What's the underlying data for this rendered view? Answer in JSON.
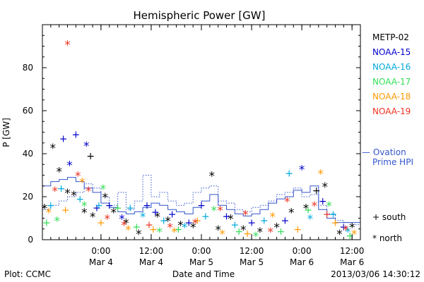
{
  "chart_data": {
    "type": "scatter",
    "title": "Hemispheric Power [GW]",
    "xlabel": "Date and Time",
    "ylabel": "P [GW]",
    "xlim": [
      "2013-03-03T10:00",
      "2013-03-06T14:00"
    ],
    "ylim": [
      0,
      100
    ],
    "y_ticks": [
      0,
      20,
      40,
      60,
      80
    ],
    "x_ticks": [
      {
        "time": "2013-03-04T00:00",
        "label_top": "0:00",
        "label_bottom": "Mar 4"
      },
      {
        "time": "2013-03-04T12:00",
        "label_top": "12:00",
        "label_bottom": "Mar 4"
      },
      {
        "time": "2013-03-05T00:00",
        "label_top": "0:00",
        "label_bottom": "Mar 5"
      },
      {
        "time": "2013-03-05T12:00",
        "label_top": "12:00",
        "label_bottom": "Mar 5"
      },
      {
        "time": "2013-03-06T00:00",
        "label_top": "0:00",
        "label_bottom": "Mar 6"
      },
      {
        "time": "2013-03-06T12:00",
        "label_top": "12:00",
        "label_bottom": "Mar 6"
      }
    ],
    "legend_placement": "right",
    "symbol_legend": {
      "south": "+ south",
      "north": "* north"
    },
    "series": [
      {
        "name": "METP-02",
        "color": "#000000",
        "points": [
          {
            "t": "2013-03-03T10:30",
            "y": 15,
            "m": "*"
          },
          {
            "t": "2013-03-03T12:30",
            "y": 43,
            "m": "*"
          },
          {
            "t": "2013-03-03T14:00",
            "y": 32,
            "m": "*"
          },
          {
            "t": "2013-03-03T16:00",
            "y": 22,
            "m": "*"
          },
          {
            "t": "2013-03-03T17:30",
            "y": 21,
            "m": "*"
          },
          {
            "t": "2013-03-03T20:00",
            "y": 13,
            "m": "*"
          },
          {
            "t": "2013-03-03T21:30",
            "y": 39,
            "m": "+"
          },
          {
            "t": "2013-03-03T22:00",
            "y": 11,
            "m": "*"
          },
          {
            "t": "2013-03-04T01:00",
            "y": 20,
            "m": "*"
          },
          {
            "t": "2013-03-04T03:00",
            "y": 13,
            "m": "*"
          },
          {
            "t": "2013-03-04T06:00",
            "y": 8,
            "m": "*"
          },
          {
            "t": "2013-03-04T09:00",
            "y": 3,
            "m": "*"
          },
          {
            "t": "2013-03-04T13:30",
            "y": 11,
            "m": "*"
          },
          {
            "t": "2013-03-04T16:00",
            "y": 9,
            "m": "*"
          },
          {
            "t": "2013-03-04T19:00",
            "y": 7,
            "m": "*"
          },
          {
            "t": "2013-03-04T22:00",
            "y": 6,
            "m": "*"
          },
          {
            "t": "2013-03-05T02:30",
            "y": 30,
            "m": "*"
          },
          {
            "t": "2013-03-05T04:00",
            "y": 5,
            "m": "*"
          },
          {
            "t": "2013-03-05T07:00",
            "y": 10,
            "m": "*"
          },
          {
            "t": "2013-03-05T10:00",
            "y": 5,
            "m": "*"
          },
          {
            "t": "2013-03-05T14:00",
            "y": 4,
            "m": "*"
          },
          {
            "t": "2013-03-05T18:00",
            "y": 6,
            "m": "*"
          },
          {
            "t": "2013-03-05T21:30",
            "y": 13,
            "m": "*"
          },
          {
            "t": "2013-03-06T01:00",
            "y": 15,
            "m": "*"
          },
          {
            "t": "2013-03-06T03:30",
            "y": 23,
            "m": "+"
          },
          {
            "t": "2013-03-06T05:30",
            "y": 25,
            "m": "*"
          },
          {
            "t": "2013-03-06T09:00",
            "y": 3,
            "m": "*"
          },
          {
            "t": "2013-03-06T12:00",
            "y": 6,
            "m": "*"
          }
        ]
      },
      {
        "name": "NOAA-15",
        "color": "#0000cc",
        "points": [
          {
            "t": "2013-03-03T15:00",
            "y": 47,
            "m": "+"
          },
          {
            "t": "2013-03-03T16:30",
            "y": 35,
            "m": "*"
          },
          {
            "t": "2013-03-03T18:00",
            "y": 49,
            "m": "+"
          },
          {
            "t": "2013-03-03T20:30",
            "y": 44,
            "m": "*"
          },
          {
            "t": "2013-03-03T23:00",
            "y": 15,
            "m": "+"
          },
          {
            "t": "2013-03-04T02:00",
            "y": 16,
            "m": "+"
          },
          {
            "t": "2013-03-04T05:00",
            "y": 10,
            "m": "*"
          },
          {
            "t": "2013-03-04T11:00",
            "y": 16,
            "m": "+"
          },
          {
            "t": "2013-03-04T13:00",
            "y": 13,
            "m": "+"
          },
          {
            "t": "2013-03-04T17:00",
            "y": 12,
            "m": "+"
          },
          {
            "t": "2013-03-04T21:00",
            "y": 8,
            "m": "+"
          },
          {
            "t": "2013-03-05T00:00",
            "y": 16,
            "m": "+"
          },
          {
            "t": "2013-03-05T06:00",
            "y": 11,
            "m": "+"
          },
          {
            "t": "2013-03-05T12:00",
            "y": 8,
            "m": "+"
          },
          {
            "t": "2013-03-05T20:00",
            "y": 9,
            "m": "+"
          },
          {
            "t": "2013-03-06T00:00",
            "y": 33,
            "m": "*"
          },
          {
            "t": "2013-03-06T05:00",
            "y": 18,
            "m": "+"
          },
          {
            "t": "2013-03-06T10:00",
            "y": 6,
            "m": "+"
          }
        ]
      },
      {
        "name": "NOAA-16",
        "color": "#00aadd",
        "points": [
          {
            "t": "2013-03-03T12:00",
            "y": 16,
            "m": "+"
          },
          {
            "t": "2013-03-03T14:30",
            "y": 24,
            "m": "+"
          },
          {
            "t": "2013-03-03T19:00",
            "y": 19,
            "m": "+"
          },
          {
            "t": "2013-03-03T23:30",
            "y": 16,
            "m": "+"
          },
          {
            "t": "2013-03-04T07:00",
            "y": 15,
            "m": "+"
          },
          {
            "t": "2013-03-04T10:00",
            "y": 11,
            "m": "*"
          },
          {
            "t": "2013-03-04T15:00",
            "y": 9,
            "m": "+"
          },
          {
            "t": "2013-03-04T20:00",
            "y": 6,
            "m": "*"
          },
          {
            "t": "2013-03-05T01:00",
            "y": 11,
            "m": "+"
          },
          {
            "t": "2013-03-05T08:00",
            "y": 7,
            "m": "+"
          },
          {
            "t": "2013-03-05T15:00",
            "y": 9,
            "m": "+"
          },
          {
            "t": "2013-03-05T21:00",
            "y": 31,
            "m": "+"
          },
          {
            "t": "2013-03-06T02:00",
            "y": 10,
            "m": "*"
          },
          {
            "t": "2013-03-06T07:30",
            "y": 12,
            "m": "+"
          },
          {
            "t": "2013-03-06T11:00",
            "y": 4,
            "m": "*"
          }
        ]
      },
      {
        "name": "NOAA-17",
        "color": "#33dd55",
        "points": [
          {
            "t": "2013-03-03T11:00",
            "y": 8,
            "m": "+"
          },
          {
            "t": "2013-03-03T13:30",
            "y": 9,
            "m": "*"
          },
          {
            "t": "2013-03-03T20:00",
            "y": 16,
            "m": "*"
          },
          {
            "t": "2013-03-04T00:30",
            "y": 24,
            "m": "*"
          },
          {
            "t": "2013-03-04T04:00",
            "y": 15,
            "m": "+"
          },
          {
            "t": "2013-03-04T08:30",
            "y": 6,
            "m": "+"
          },
          {
            "t": "2013-03-04T14:00",
            "y": 4,
            "m": "*"
          },
          {
            "t": "2013-03-04T18:30",
            "y": 5,
            "m": "+"
          },
          {
            "t": "2013-03-05T03:00",
            "y": 14,
            "m": "*"
          },
          {
            "t": "2013-03-05T09:00",
            "y": 4,
            "m": "+"
          },
          {
            "t": "2013-03-05T13:00",
            "y": 2,
            "m": "*"
          },
          {
            "t": "2013-03-05T19:00",
            "y": 4,
            "m": "+"
          },
          {
            "t": "2013-03-06T01:30",
            "y": 14,
            "m": "+"
          },
          {
            "t": "2013-03-06T06:30",
            "y": 16,
            "m": "*"
          },
          {
            "t": "2013-03-06T11:30",
            "y": 2,
            "m": "+"
          }
        ]
      },
      {
        "name": "NOAA-18",
        "color": "#ff9900",
        "points": [
          {
            "t": "2013-03-03T11:30",
            "y": 13,
            "m": "*"
          },
          {
            "t": "2013-03-03T15:30",
            "y": 14,
            "m": "+"
          },
          {
            "t": "2013-03-03T19:30",
            "y": 27,
            "m": "*"
          },
          {
            "t": "2013-03-04T00:00",
            "y": 8,
            "m": "+"
          },
          {
            "t": "2013-03-04T06:30",
            "y": 5,
            "m": "*"
          },
          {
            "t": "2013-03-04T12:30",
            "y": 5,
            "m": "+"
          },
          {
            "t": "2013-03-04T17:30",
            "y": 4,
            "m": "*"
          },
          {
            "t": "2013-03-04T23:00",
            "y": 9,
            "m": "+"
          },
          {
            "t": "2013-03-05T05:00",
            "y": 3,
            "m": "*"
          },
          {
            "t": "2013-03-05T11:00",
            "y": 3,
            "m": "+"
          },
          {
            "t": "2013-03-05T17:00",
            "y": 11,
            "m": "*"
          },
          {
            "t": "2013-03-05T23:00",
            "y": 5,
            "m": "+"
          },
          {
            "t": "2013-03-06T04:30",
            "y": 31,
            "m": "*"
          },
          {
            "t": "2013-03-06T08:00",
            "y": 8,
            "m": "+"
          },
          {
            "t": "2013-03-06T12:30",
            "y": 3,
            "m": "*"
          }
        ]
      },
      {
        "name": "NOAA-19",
        "color": "#ee3322",
        "points": [
          {
            "t": "2013-03-03T13:00",
            "y": 23,
            "m": "*"
          },
          {
            "t": "2013-03-03T16:00",
            "y": 91,
            "m": "*"
          },
          {
            "t": "2013-03-03T18:30",
            "y": 30,
            "m": "*"
          },
          {
            "t": "2013-03-03T21:00",
            "y": 23,
            "m": "*"
          },
          {
            "t": "2013-03-04T01:30",
            "y": 10,
            "m": "*"
          },
          {
            "t": "2013-03-04T05:30",
            "y": 7,
            "m": "*"
          },
          {
            "t": "2013-03-04T11:30",
            "y": 7,
            "m": "+"
          },
          {
            "t": "2013-03-04T16:30",
            "y": 6,
            "m": "*"
          },
          {
            "t": "2013-03-04T22:30",
            "y": 8,
            "m": "*"
          },
          {
            "t": "2013-03-05T04:30",
            "y": 14,
            "m": "*"
          },
          {
            "t": "2013-03-05T10:30",
            "y": 12,
            "m": "*"
          },
          {
            "t": "2013-03-05T16:30",
            "y": 4,
            "m": "*"
          },
          {
            "t": "2013-03-05T20:30",
            "y": 18,
            "m": "*"
          },
          {
            "t": "2013-03-06T03:00",
            "y": 16,
            "m": "*"
          },
          {
            "t": "2013-03-06T06:00",
            "y": 12,
            "m": "+"
          },
          {
            "t": "2013-03-06T10:30",
            "y": 5,
            "m": "*"
          }
        ]
      }
    ],
    "ovation": {
      "name": "— Ovation Prime HPI",
      "color": "#3355cc",
      "north_dashed": true,
      "steps": [
        {
          "t0": "2013-03-03T10:00",
          "t1": "2013-03-03T12:00",
          "south": 25,
          "north": 14
        },
        {
          "t0": "2013-03-03T12:00",
          "t1": "2013-03-03T14:00",
          "south": 27,
          "north": 16
        },
        {
          "t0": "2013-03-03T14:00",
          "t1": "2013-03-03T16:00",
          "south": 28,
          "north": 18
        },
        {
          "t0": "2013-03-03T16:00",
          "t1": "2013-03-03T18:00",
          "south": 29,
          "north": 20
        },
        {
          "t0": "2013-03-03T18:00",
          "t1": "2013-03-03T20:00",
          "south": 27,
          "north": 22
        },
        {
          "t0": "2013-03-03T20:00",
          "t1": "2013-03-03T22:00",
          "south": 24,
          "north": 26
        },
        {
          "t0": "2013-03-03T22:00",
          "t1": "2013-03-04T00:00",
          "south": 22,
          "north": 24
        },
        {
          "t0": "2013-03-04T00:00",
          "t1": "2013-03-04T02:00",
          "south": 17,
          "north": 20
        },
        {
          "t0": "2013-03-04T02:00",
          "t1": "2013-03-04T04:00",
          "south": 15,
          "north": 16
        },
        {
          "t0": "2013-03-04T04:00",
          "t1": "2013-03-04T06:00",
          "south": 13,
          "north": 22
        },
        {
          "t0": "2013-03-04T06:00",
          "t1": "2013-03-04T08:00",
          "south": 12,
          "north": 14
        },
        {
          "t0": "2013-03-04T08:00",
          "t1": "2013-03-04T10:00",
          "south": 13,
          "north": 18
        },
        {
          "t0": "2013-03-04T10:00",
          "t1": "2013-03-04T12:00",
          "south": 15,
          "north": 30
        },
        {
          "t0": "2013-03-04T12:00",
          "t1": "2013-03-04T14:00",
          "south": 17,
          "north": 20
        },
        {
          "t0": "2013-03-04T14:00",
          "t1": "2013-03-04T16:00",
          "south": 16,
          "north": 22
        },
        {
          "t0": "2013-03-04T16:00",
          "t1": "2013-03-04T18:00",
          "south": 14,
          "north": 18
        },
        {
          "t0": "2013-03-04T18:00",
          "t1": "2013-03-04T20:00",
          "south": 13,
          "north": 16
        },
        {
          "t0": "2013-03-04T20:00",
          "t1": "2013-03-04T22:00",
          "south": 12,
          "north": 17
        },
        {
          "t0": "2013-03-04T22:00",
          "t1": "2013-03-05T00:00",
          "south": 15,
          "north": 22
        },
        {
          "t0": "2013-03-05T00:00",
          "t1": "2013-03-05T02:00",
          "south": 18,
          "north": 24
        },
        {
          "t0": "2013-03-05T02:00",
          "t1": "2013-03-05T04:00",
          "south": 21,
          "north": 25
        },
        {
          "t0": "2013-03-05T04:00",
          "t1": "2013-03-05T06:00",
          "south": 16,
          "north": 18
        },
        {
          "t0": "2013-03-05T06:00",
          "t1": "2013-03-05T08:00",
          "south": 14,
          "north": 17
        },
        {
          "t0": "2013-03-05T08:00",
          "t1": "2013-03-05T10:00",
          "south": 12,
          "north": 14
        },
        {
          "t0": "2013-03-05T10:00",
          "t1": "2013-03-05T12:00",
          "south": 11,
          "north": 13
        },
        {
          "t0": "2013-03-05T12:00",
          "t1": "2013-03-05T14:00",
          "south": 12,
          "north": 15
        },
        {
          "t0": "2013-03-05T14:00",
          "t1": "2013-03-05T16:00",
          "south": 14,
          "north": 16
        },
        {
          "t0": "2013-03-05T16:00",
          "t1": "2013-03-05T18:00",
          "south": 17,
          "north": 18
        },
        {
          "t0": "2013-03-05T18:00",
          "t1": "2013-03-05T20:00",
          "south": 19,
          "north": 21
        },
        {
          "t0": "2013-03-05T20:00",
          "t1": "2013-03-05T22:00",
          "south": 20,
          "north": 22
        },
        {
          "t0": "2013-03-05T22:00",
          "t1": "2013-03-06T00:00",
          "south": 23,
          "north": 24
        },
        {
          "t0": "2013-03-06T00:00",
          "t1": "2013-03-06T02:00",
          "south": 22,
          "north": 20
        },
        {
          "t0": "2013-03-06T02:00",
          "t1": "2013-03-06T04:00",
          "south": 25,
          "north": 21
        },
        {
          "t0": "2013-03-06T04:00",
          "t1": "2013-03-06T06:00",
          "south": 14,
          "north": 16
        },
        {
          "t0": "2013-03-06T06:00",
          "t1": "2013-03-06T08:00",
          "south": 10,
          "north": 12
        },
        {
          "t0": "2013-03-06T08:00",
          "t1": "2013-03-06T10:00",
          "south": 8,
          "north": 9
        },
        {
          "t0": "2013-03-06T10:00",
          "t1": "2013-03-06T12:00",
          "south": 8,
          "north": 8
        },
        {
          "t0": "2013-03-06T12:00",
          "t1": "2013-03-06T14:00",
          "south": 8,
          "north": 7
        }
      ]
    }
  },
  "footer": {
    "credit": "Plot: CCMC",
    "timestamp": "2013/03/06 14:30:12"
  }
}
